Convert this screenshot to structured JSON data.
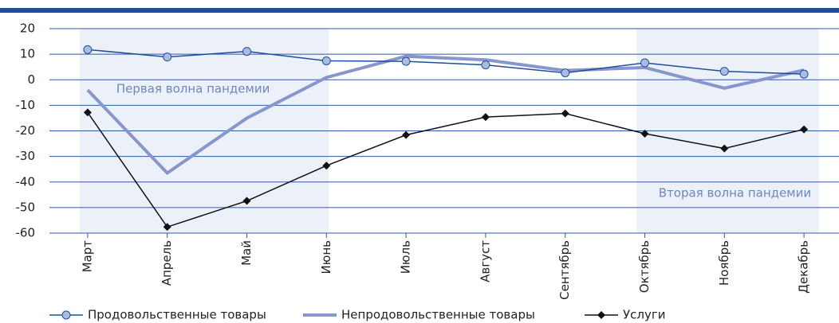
{
  "chart_data": {
    "type": "line",
    "categories": [
      "Март",
      "Апрель",
      "Май",
      "Июнь",
      "Июль",
      "Август",
      "Сентябрь",
      "Октябрь",
      "Ноябрь",
      "Декабрь"
    ],
    "series": [
      {
        "name": "Продовольственные товары",
        "color": "#1f4e9c",
        "marker": "circle",
        "values": [
          11.8,
          8.9,
          11.1,
          7.4,
          7.2,
          5.8,
          2.7,
          6.6,
          3.3,
          2.2
        ]
      },
      {
        "name": "Непродовольственные товары",
        "color": "#8796cc",
        "marker": "none",
        "values": [
          -4,
          -36.5,
          -15,
          0.9,
          9.2,
          7.8,
          3.6,
          4.8,
          -3.3,
          3.8
        ]
      },
      {
        "name": "Услуги",
        "color": "#111111",
        "marker": "diamond",
        "values": [
          -12.8,
          -57.6,
          -47.4,
          -33.6,
          -21.6,
          -14.6,
          -13.2,
          -21.1,
          -26.9,
          -19.4
        ]
      }
    ],
    "annotations": [
      {
        "text": "Первая волна пандемии",
        "from": "Март",
        "to": "Июнь"
      },
      {
        "text": "Вторая волна пандемии",
        "from": "Октябрь",
        "to": "Декабрь"
      }
    ],
    "ylim": [
      -60,
      20
    ],
    "yticks": [
      -60,
      -50,
      -40,
      -30,
      -20,
      -10,
      0,
      10,
      20
    ],
    "grid": true,
    "legend": "bottom"
  }
}
